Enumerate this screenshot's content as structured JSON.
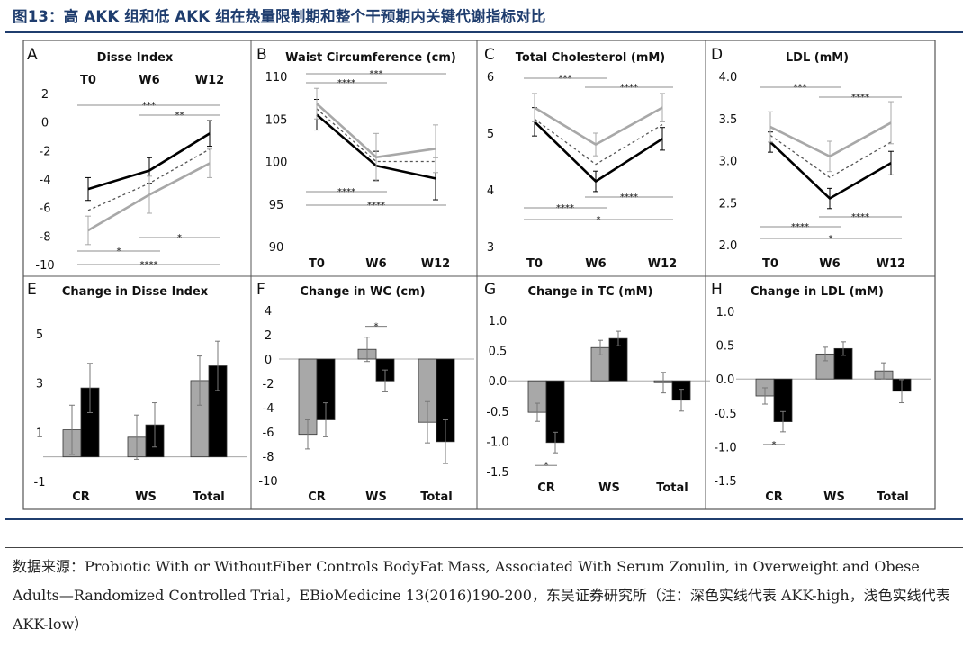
{
  "figure_title": "图13：高 AKK 组和低 AKK 组在热量限制期和整个干预期内关键代谢指标对比",
  "source": {
    "prefix": "数据来源：",
    "text": "Probiotic With or WithoutFiber Controls BodyFat Mass, Associated With Serum Zonulin, in Overweight and Obese Adults—Randomized Controlled Trial，EBioMedicine 13(2016)190-200，东吴证券研究所（注：深色实线代表 AKK-high，浅色实线代表 AKK-low）"
  },
  "colors": {
    "dark": "#000000",
    "light": "#a8a8a8",
    "dotted": "#555555",
    "rule": "#1f3d6e",
    "frame": "#555555",
    "bar_outline": "#333333"
  },
  "chart_data": [
    {
      "panel": "A",
      "type": "line",
      "title": "Disse Index",
      "categories": [
        "T0",
        "W6",
        "W12"
      ],
      "ylim": [
        -10,
        2
      ],
      "yticks": [
        "2",
        "0",
        "-2",
        "-4",
        "-6",
        "-8",
        "-10"
      ],
      "ytick_values": [
        2,
        0,
        -2,
        -4,
        -6,
        -8,
        -10
      ],
      "series": [
        {
          "name": "AKK-high",
          "style": "dark",
          "values": [
            -4.7,
            -3.4,
            -0.8
          ],
          "err": [
            0.8,
            0.9,
            0.9
          ]
        },
        {
          "name": "Total",
          "style": "dotted",
          "values": [
            -6.2,
            -4.3,
            -1.9
          ],
          "err": [
            0,
            0,
            0
          ]
        },
        {
          "name": "AKK-low",
          "style": "light",
          "values": [
            -7.6,
            -5.1,
            -2.9
          ],
          "err": [
            1.0,
            1.3,
            1.0
          ]
        }
      ],
      "sig_above": [
        {
          "from": 0,
          "to": 2,
          "label": "***"
        },
        {
          "from": 1,
          "to": 2,
          "label": "**"
        }
      ],
      "sig_below": [
        {
          "from": 0,
          "to": 1,
          "label": "*"
        },
        {
          "from": 1,
          "to": 2,
          "label": "*"
        },
        {
          "from": 0,
          "to": 2,
          "label": "****"
        }
      ]
    },
    {
      "panel": "B",
      "type": "line",
      "title": "Waist Circumference (cm)",
      "categories": [
        "T0",
        "W6",
        "W12"
      ],
      "ylim": [
        90,
        110
      ],
      "yticks": [
        "110",
        "105",
        "100",
        "95",
        "90"
      ],
      "ytick_values": [
        110,
        105,
        100,
        95,
        90
      ],
      "series": [
        {
          "name": "AKK-high",
          "style": "dark",
          "values": [
            105.5,
            99.5,
            98.0
          ],
          "err": [
            1.8,
            1.7,
            2.5
          ]
        },
        {
          "name": "Total",
          "style": "dotted",
          "values": [
            106.2,
            100.0,
            100.0
          ],
          "err": [
            0,
            0,
            0
          ]
        },
        {
          "name": "AKK-low",
          "style": "light",
          "values": [
            106.8,
            100.5,
            101.5
          ],
          "err": [
            1.8,
            2.8,
            2.8
          ]
        }
      ],
      "sig_above": [
        {
          "from": 0,
          "to": 2,
          "label": "***"
        },
        {
          "from": 0,
          "to": 1,
          "label": "****"
        }
      ],
      "sig_below": [
        {
          "from": 0,
          "to": 1,
          "label": "****"
        },
        {
          "from": 0,
          "to": 2,
          "label": "****"
        }
      ]
    },
    {
      "panel": "C",
      "type": "line",
      "title": "Total Cholesterol (mM)",
      "categories": [
        "T0",
        "W6",
        "W12"
      ],
      "ylim": [
        3,
        6
      ],
      "yticks": [
        "6",
        "5",
        "4",
        "3"
      ],
      "ytick_values": [
        6,
        5,
        4,
        3
      ],
      "series": [
        {
          "name": "AKK-high",
          "style": "dark",
          "values": [
            5.2,
            4.15,
            4.9
          ],
          "err": [
            0.25,
            0.18,
            0.2
          ]
        },
        {
          "name": "Total",
          "style": "dotted",
          "values": [
            5.25,
            4.45,
            5.15
          ],
          "err": [
            0,
            0,
            0
          ]
        },
        {
          "name": "AKK-low",
          "style": "light",
          "values": [
            5.45,
            4.8,
            5.45
          ],
          "err": [
            0.25,
            0.2,
            0.25
          ]
        }
      ],
      "sig_above": [
        {
          "from": 0,
          "to": 1,
          "label": "***"
        },
        {
          "from": 1,
          "to": 2,
          "label": "****"
        }
      ],
      "sig_below": [
        {
          "from": 1,
          "to": 2,
          "label": "****"
        },
        {
          "from": 0,
          "to": 1,
          "label": "****"
        },
        {
          "from": 0,
          "to": 2,
          "label": "*"
        }
      ]
    },
    {
      "panel": "D",
      "type": "line",
      "title": "LDL (mM)",
      "categories": [
        "T0",
        "W6",
        "W12"
      ],
      "ylim": [
        2,
        4
      ],
      "yticks": [
        "4.0",
        "3.5",
        "3.0",
        "2.5",
        "2.0"
      ],
      "ytick_values": [
        4,
        3.5,
        3,
        2.5,
        2
      ],
      "series": [
        {
          "name": "AKK-high",
          "style": "dark",
          "values": [
            3.22,
            2.55,
            2.97
          ],
          "err": [
            0.12,
            0.12,
            0.14
          ]
        },
        {
          "name": "Total",
          "style": "dotted",
          "values": [
            3.3,
            2.8,
            3.22
          ],
          "err": [
            0,
            0,
            0
          ]
        },
        {
          "name": "AKK-low",
          "style": "light",
          "values": [
            3.4,
            3.05,
            3.45
          ],
          "err": [
            0.18,
            0.18,
            0.25
          ]
        }
      ],
      "sig_above": [
        {
          "from": 0,
          "to": 1,
          "label": "***"
        },
        {
          "from": 1,
          "to": 2,
          "label": "****"
        }
      ],
      "sig_below": [
        {
          "from": 1,
          "to": 2,
          "label": "****"
        },
        {
          "from": 0,
          "to": 1,
          "label": "****"
        },
        {
          "from": 0,
          "to": 2,
          "label": "*"
        }
      ]
    },
    {
      "panel": "E",
      "type": "bar",
      "title": "Change in Disse Index",
      "categories": [
        "CR",
        "WS",
        "Total"
      ],
      "ylim": [
        -1,
        5
      ],
      "yticks": [
        "5",
        "3",
        "1",
        "-1"
      ],
      "ytick_values": [
        5,
        3,
        1,
        -1
      ],
      "series": [
        {
          "name": "AKK-low",
          "style": "light",
          "values": [
            1.1,
            0.8,
            3.1
          ],
          "err": [
            1.0,
            0.9,
            1.0
          ]
        },
        {
          "name": "AKK-high",
          "style": "dark",
          "values": [
            2.8,
            1.3,
            3.7
          ],
          "err": [
            1.0,
            0.9,
            1.0
          ]
        }
      ],
      "sig": []
    },
    {
      "panel": "F",
      "type": "bar",
      "title": "Change in WC (cm)",
      "categories": [
        "CR",
        "WS",
        "Total"
      ],
      "ylim": [
        -10,
        4
      ],
      "yticks": [
        "4",
        "2",
        "0",
        "-2",
        "-4",
        "-6",
        "-8",
        "-10"
      ],
      "ytick_values": [
        4,
        2,
        0,
        -2,
        -4,
        -6,
        -8,
        -10
      ],
      "series": [
        {
          "name": "AKK-low",
          "style": "light",
          "values": [
            -6.2,
            0.8,
            -5.2
          ],
          "err": [
            1.2,
            1.0,
            1.7
          ]
        },
        {
          "name": "AKK-high",
          "style": "dark",
          "values": [
            -5.0,
            -1.8,
            -6.8
          ],
          "err": [
            1.4,
            0.9,
            1.8
          ]
        }
      ],
      "sig": [
        {
          "cat": 1,
          "label": "*"
        }
      ]
    },
    {
      "panel": "G",
      "type": "bar",
      "title": "Change in TC (mM)",
      "categories": [
        "CR",
        "WS",
        "Total"
      ],
      "ylim": [
        -1.5,
        1.0
      ],
      "yticks": [
        "1.0",
        "0.5",
        "0.0",
        "-0.5",
        "-1.0",
        "-1.5"
      ],
      "ytick_values": [
        1,
        0.5,
        0,
        -0.5,
        -1,
        -1.5
      ],
      "series": [
        {
          "name": "AKK-low",
          "style": "light",
          "values": [
            -0.52,
            0.55,
            -0.03
          ],
          "err": [
            0.15,
            0.12,
            0.17
          ]
        },
        {
          "name": "AKK-high",
          "style": "dark",
          "values": [
            -1.02,
            0.7,
            -0.32
          ],
          "err": [
            0.17,
            0.12,
            0.18
          ]
        }
      ],
      "sig": [
        {
          "cat": 0,
          "label": "*"
        }
      ]
    },
    {
      "panel": "H",
      "type": "bar",
      "title": "Change in LDL (mM)",
      "categories": [
        "CR",
        "WS",
        "Total"
      ],
      "ylim": [
        -1.5,
        1.0
      ],
      "yticks": [
        "1.0",
        "0.5",
        "0.0",
        "-0.5",
        "-1.0",
        "-1.5"
      ],
      "ytick_values": [
        1,
        0.5,
        0,
        -0.5,
        -1,
        -1.5
      ],
      "series": [
        {
          "name": "AKK-low",
          "style": "light",
          "values": [
            -0.25,
            0.37,
            0.12
          ],
          "err": [
            0.12,
            0.1,
            0.12
          ]
        },
        {
          "name": "AKK-high",
          "style": "dark",
          "values": [
            -0.63,
            0.45,
            -0.18
          ],
          "err": [
            0.15,
            0.1,
            0.17
          ]
        }
      ],
      "sig": [
        {
          "cat": 0,
          "label": "*"
        }
      ]
    }
  ]
}
